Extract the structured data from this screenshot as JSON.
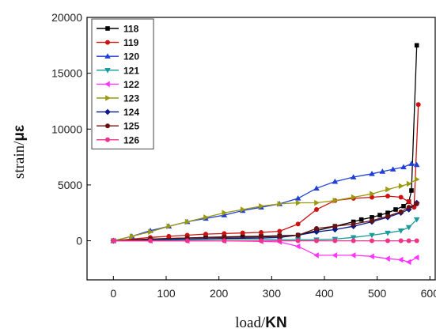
{
  "chart_data": {
    "type": "line",
    "xlabel": "load/",
    "xlabel_unit": "KN",
    "ylabel": "strain/",
    "ylabel_unit": "με",
    "xlim": [
      -50,
      610
    ],
    "ylim": [
      -3500,
      20000
    ],
    "x_ticks": [
      0,
      100,
      200,
      300,
      400,
      500,
      600
    ],
    "y_ticks": [
      0,
      5000,
      10000,
      15000,
      20000
    ],
    "grid": false,
    "legend_position": "top-left",
    "series": [
      {
        "name": "118",
        "color": "#000000",
        "marker": "square",
        "points": [
          [
            0,
            0
          ],
          [
            70,
            150
          ],
          [
            105,
            200
          ],
          [
            140,
            250
          ],
          [
            175,
            300
          ],
          [
            210,
            350
          ],
          [
            245,
            380
          ],
          [
            280,
            400
          ],
          [
            315,
            450
          ],
          [
            350,
            500
          ],
          [
            385,
            900
          ],
          [
            420,
            1300
          ],
          [
            455,
            1700
          ],
          [
            470,
            1900
          ],
          [
            490,
            2100
          ],
          [
            505,
            2300
          ],
          [
            520,
            2500
          ],
          [
            535,
            2800
          ],
          [
            550,
            3100
          ],
          [
            560,
            3500
          ],
          [
            565,
            4500
          ],
          [
            575,
            17500
          ]
        ]
      },
      {
        "name": "119",
        "color": "#cc1111",
        "marker": "circle",
        "points": [
          [
            0,
            0
          ],
          [
            70,
            300
          ],
          [
            105,
            400
          ],
          [
            140,
            500
          ],
          [
            175,
            600
          ],
          [
            210,
            650
          ],
          [
            245,
            700
          ],
          [
            280,
            750
          ],
          [
            315,
            850
          ],
          [
            350,
            1500
          ],
          [
            385,
            2800
          ],
          [
            420,
            3600
          ],
          [
            455,
            3800
          ],
          [
            490,
            3900
          ],
          [
            520,
            4000
          ],
          [
            545,
            3900
          ],
          [
            560,
            3500
          ],
          [
            570,
            3000
          ],
          [
            578,
            12200
          ]
        ]
      },
      {
        "name": "120",
        "color": "#1f3fd8",
        "marker": "triangle-up",
        "points": [
          [
            0,
            0
          ],
          [
            35,
            400
          ],
          [
            70,
            900
          ],
          [
            105,
            1300
          ],
          [
            140,
            1700
          ],
          [
            175,
            2000
          ],
          [
            210,
            2300
          ],
          [
            245,
            2700
          ],
          [
            280,
            3000
          ],
          [
            315,
            3300
          ],
          [
            350,
            3800
          ],
          [
            385,
            4700
          ],
          [
            420,
            5300
          ],
          [
            455,
            5700
          ],
          [
            490,
            6000
          ],
          [
            510,
            6200
          ],
          [
            530,
            6400
          ],
          [
            550,
            6600
          ],
          [
            565,
            6900
          ],
          [
            575,
            6800
          ]
        ]
      },
      {
        "name": "121",
        "color": "#1a9a9a",
        "marker": "triangle-down",
        "points": [
          [
            0,
            0
          ],
          [
            70,
            50
          ],
          [
            140,
            100
          ],
          [
            210,
            150
          ],
          [
            280,
            150
          ],
          [
            315,
            100
          ],
          [
            350,
            100
          ],
          [
            385,
            100
          ],
          [
            420,
            150
          ],
          [
            455,
            300
          ],
          [
            490,
            500
          ],
          [
            520,
            700
          ],
          [
            545,
            900
          ],
          [
            560,
            1200
          ],
          [
            575,
            1900
          ]
        ]
      },
      {
        "name": "122",
        "color": "#ff33ff",
        "marker": "triangle-left",
        "points": [
          [
            0,
            0
          ],
          [
            70,
            0
          ],
          [
            140,
            0
          ],
          [
            210,
            0
          ],
          [
            280,
            -50
          ],
          [
            315,
            -100
          ],
          [
            350,
            -500
          ],
          [
            385,
            -1300
          ],
          [
            420,
            -1300
          ],
          [
            455,
            -1300
          ],
          [
            490,
            -1400
          ],
          [
            520,
            -1600
          ],
          [
            545,
            -1700
          ],
          [
            560,
            -1900
          ],
          [
            575,
            -1500
          ]
        ]
      },
      {
        "name": "123",
        "color": "#9a9a10",
        "marker": "triangle-right",
        "points": [
          [
            0,
            0
          ],
          [
            35,
            400
          ],
          [
            70,
            800
          ],
          [
            105,
            1300
          ],
          [
            140,
            1700
          ],
          [
            175,
            2100
          ],
          [
            210,
            2500
          ],
          [
            245,
            2800
          ],
          [
            280,
            3100
          ],
          [
            315,
            3300
          ],
          [
            350,
            3400
          ],
          [
            385,
            3400
          ],
          [
            420,
            3600
          ],
          [
            455,
            3900
          ],
          [
            490,
            4200
          ],
          [
            520,
            4600
          ],
          [
            545,
            4900
          ],
          [
            560,
            5100
          ],
          [
            575,
            5500
          ]
        ]
      },
      {
        "name": "124",
        "color": "#0a1a88",
        "marker": "diamond",
        "points": [
          [
            0,
            0
          ],
          [
            70,
            100
          ],
          [
            140,
            150
          ],
          [
            210,
            200
          ],
          [
            280,
            250
          ],
          [
            315,
            300
          ],
          [
            350,
            500
          ],
          [
            385,
            800
          ],
          [
            420,
            1000
          ],
          [
            455,
            1300
          ],
          [
            490,
            1700
          ],
          [
            520,
            2100
          ],
          [
            545,
            2500
          ],
          [
            560,
            2800
          ],
          [
            575,
            3400
          ]
        ]
      },
      {
        "name": "125",
        "color": "#6a1010",
        "marker": "circle",
        "points": [
          [
            0,
            0
          ],
          [
            70,
            150
          ],
          [
            140,
            250
          ],
          [
            210,
            300
          ],
          [
            280,
            350
          ],
          [
            315,
            400
          ],
          [
            350,
            500
          ],
          [
            385,
            1100
          ],
          [
            420,
            1300
          ],
          [
            455,
            1500
          ],
          [
            490,
            1800
          ],
          [
            520,
            2200
          ],
          [
            545,
            2600
          ],
          [
            560,
            3000
          ],
          [
            575,
            3300
          ]
        ]
      },
      {
        "name": "126",
        "color": "#ee3388",
        "marker": "circle",
        "points": [
          [
            0,
            0
          ],
          [
            70,
            0
          ],
          [
            140,
            0
          ],
          [
            210,
            0
          ],
          [
            280,
            0
          ],
          [
            315,
            0
          ],
          [
            350,
            0
          ],
          [
            385,
            0
          ],
          [
            420,
            0
          ],
          [
            455,
            0
          ],
          [
            490,
            0
          ],
          [
            520,
            0
          ],
          [
            545,
            0
          ],
          [
            560,
            0
          ],
          [
            575,
            0
          ]
        ]
      }
    ]
  }
}
